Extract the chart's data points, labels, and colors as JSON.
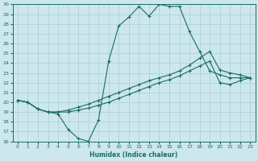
{
  "xlabel": "Humidex (Indice chaleur)",
  "bg_color": "#cce8ec",
  "line_color": "#1a6b6b",
  "grid_color": "#aacdd4",
  "xlim": [
    -0.5,
    23.5
  ],
  "ylim": [
    16,
    30
  ],
  "xticks": [
    0,
    1,
    2,
    3,
    4,
    5,
    6,
    7,
    8,
    9,
    10,
    11,
    12,
    13,
    14,
    15,
    16,
    17,
    18,
    19,
    20,
    21,
    22,
    23
  ],
  "yticks": [
    16,
    17,
    18,
    19,
    20,
    21,
    22,
    23,
    24,
    25,
    26,
    27,
    28,
    29,
    30
  ],
  "curve1_x": [
    0,
    1,
    2,
    3,
    4,
    5,
    6,
    7,
    8,
    9,
    10,
    11,
    12,
    13,
    14,
    15,
    16,
    17,
    18,
    19,
    20,
    21,
    22,
    23
  ],
  "curve1_y": [
    20.2,
    20.0,
    19.3,
    19.0,
    18.8,
    17.2,
    16.3,
    16.0,
    18.2,
    24.2,
    27.8,
    28.7,
    29.8,
    28.8,
    30.0,
    29.8,
    29.8,
    27.2,
    25.2,
    23.2,
    22.8,
    22.5,
    22.5,
    22.5
  ],
  "curve2_x": [
    0,
    1,
    2,
    3,
    4,
    5,
    6,
    7,
    8,
    9,
    10,
    11,
    12,
    13,
    14,
    15,
    16,
    17,
    18,
    19,
    20,
    21,
    22,
    23
  ],
  "curve2_y": [
    20.2,
    20.0,
    19.3,
    19.0,
    19.0,
    19.2,
    19.5,
    19.8,
    20.2,
    20.6,
    21.0,
    21.4,
    21.8,
    22.2,
    22.5,
    22.8,
    23.2,
    23.8,
    24.5,
    25.2,
    23.3,
    23.0,
    22.8,
    22.5
  ],
  "curve3_x": [
    0,
    1,
    2,
    3,
    4,
    5,
    6,
    7,
    8,
    9,
    10,
    11,
    12,
    13,
    14,
    15,
    16,
    17,
    18,
    19,
    20,
    21,
    22,
    23
  ],
  "curve3_y": [
    20.2,
    20.0,
    19.3,
    19.0,
    19.0,
    19.0,
    19.2,
    19.4,
    19.7,
    20.0,
    20.4,
    20.8,
    21.2,
    21.6,
    22.0,
    22.3,
    22.7,
    23.2,
    23.7,
    24.2,
    22.0,
    21.8,
    22.2,
    22.5
  ]
}
